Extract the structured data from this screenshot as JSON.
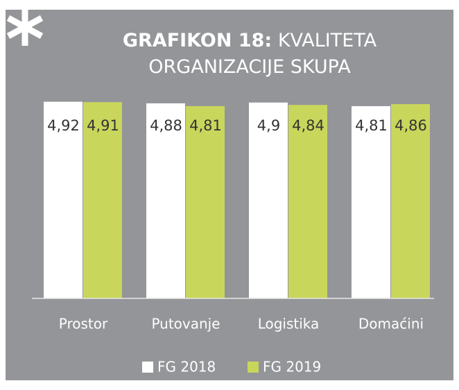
{
  "chart_data": {
    "type": "bar",
    "title_label": "GRAFIKON 18:",
    "title": "KVALITETA ORGANIZACIJE SKUPA",
    "categories": [
      "Prostor",
      "Putovanje",
      "Logistika",
      "Domaćini"
    ],
    "series": [
      {
        "name": "FG 2018",
        "color": "#ffffff",
        "values": [
          4.92,
          4.88,
          4.9,
          4.81
        ],
        "value_labels": [
          "4,92",
          "4,88",
          "4,9",
          "4,81"
        ]
      },
      {
        "name": "FG 2019",
        "color": "#c9d65c",
        "values": [
          4.91,
          4.81,
          4.84,
          4.86
        ],
        "value_labels": [
          "4,91",
          "4,81",
          "4,84",
          "4,86"
        ]
      }
    ],
    "ylim": [
      0,
      5
    ]
  }
}
